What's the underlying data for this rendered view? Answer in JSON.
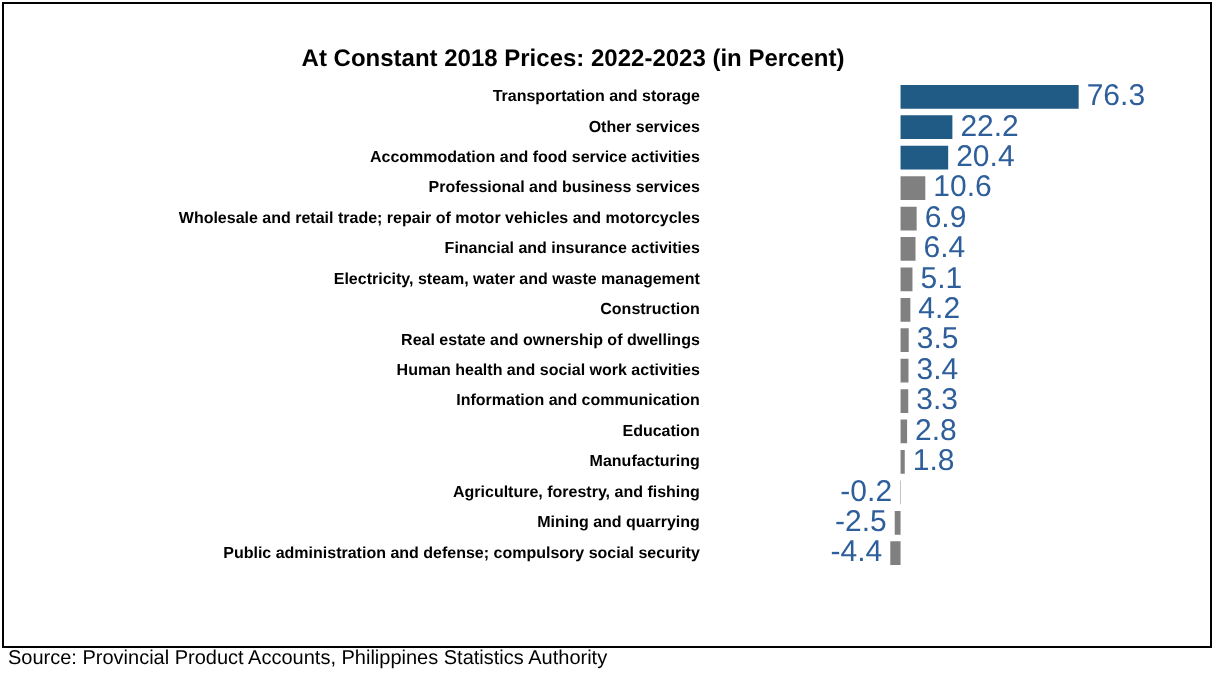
{
  "chart_data": {
    "type": "bar",
    "orientation": "horizontal",
    "title": "At Constant 2018 Prices: 2022-2023 (in Percent)",
    "categories": [
      "Transportation and storage",
      "Other services",
      "Accommodation and food service activities",
      "Professional and business services",
      "Wholesale and retail trade; repair of motor vehicles and motorcycles",
      "Financial and insurance activities",
      "Electricity, steam, water and waste management",
      "Construction",
      "Real estate and ownership of dwellings",
      "Human health and social work activities",
      "Information and communication",
      "Education",
      "Manufacturing",
      "Agriculture, forestry, and fishing",
      "Mining and quarrying",
      "Public administration and defense; compulsory social security"
    ],
    "values": [
      76.3,
      22.2,
      20.4,
      10.6,
      6.9,
      6.4,
      5.1,
      4.2,
      3.5,
      3.4,
      3.3,
      2.8,
      1.8,
      -0.2,
      -2.5,
      -4.4
    ],
    "colors": [
      "#1f5b84",
      "#1f5b84",
      "#1f5b84",
      "#808080",
      "#808080",
      "#808080",
      "#808080",
      "#808080",
      "#808080",
      "#808080",
      "#808080",
      "#808080",
      "#808080",
      "#808080",
      "#808080",
      "#808080"
    ],
    "data_labels": true,
    "legend": false,
    "tick_labels": "y",
    "annotations": [
      "Source: Provincial Product Accounts, Philippines Statistics Authority"
    ]
  }
}
